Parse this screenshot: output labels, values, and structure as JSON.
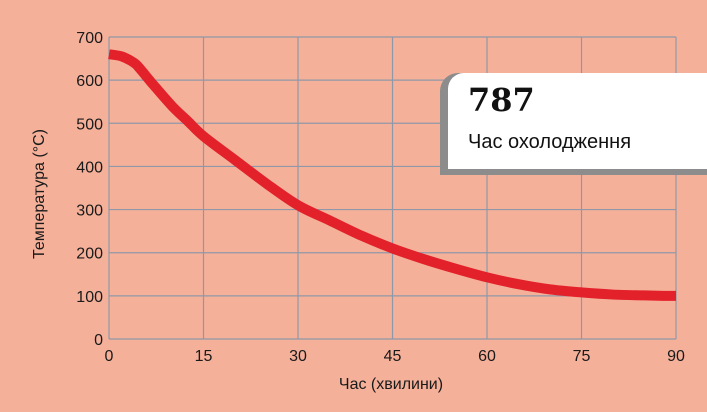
{
  "callout": {
    "value": "787",
    "label": "Час охолодження"
  },
  "colors": {
    "background": "#f5b099",
    "grid": "#8f98a8",
    "line": "#e3212b"
  },
  "chart_data": {
    "type": "line",
    "title": "",
    "xlabel": "Час (хвилини)",
    "ylabel": "Температура (°C)",
    "xlim": [
      0,
      90
    ],
    "ylim": [
      0,
      700
    ],
    "xticks": [
      0,
      15,
      30,
      45,
      60,
      75,
      90
    ],
    "yticks": [
      0,
      100,
      200,
      300,
      400,
      500,
      600,
      700
    ],
    "grid": true,
    "series": [
      {
        "x": [
          0,
          2,
          4,
          5,
          7,
          10,
          12.5,
          15,
          20,
          25,
          30,
          35,
          40,
          45,
          50,
          55,
          60,
          65,
          70,
          75,
          80,
          85,
          88,
          90
        ],
        "y": [
          660,
          655,
          640,
          625,
          590,
          540,
          505,
          470,
          415,
          360,
          310,
          275,
          240,
          210,
          185,
          163,
          143,
          127,
          115,
          108,
          103,
          101,
          100,
          100
        ]
      }
    ]
  }
}
